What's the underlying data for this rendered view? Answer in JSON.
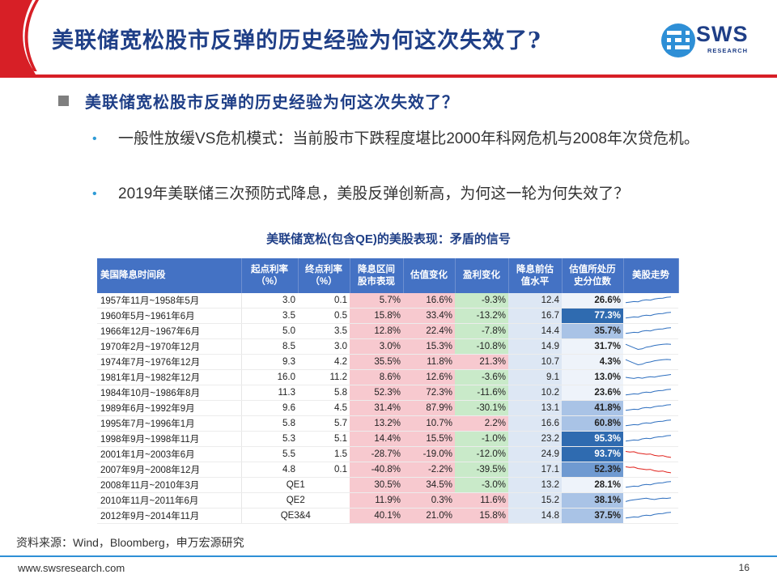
{
  "title": "美联储宽松股市反弹的历史经验为何这次失效了?",
  "logo": {
    "name": "SWS",
    "sub": "RESEARCH"
  },
  "headline": "美联储宽松股市反弹的历史经验为何这次失效了？",
  "bullets": [
    "一般性放缓VS危机模式：当前股市下跌程度堪比2000年科网危机与2008年次贷危机。",
    "2019年美联储三次预防式降息，美股反弹创新高，为何这一轮为何失效了？"
  ],
  "table_title": "美联储宽松(包含QE)的美股表现：矛盾的信号",
  "headers": [
    "美国降息时间段",
    "起点利率（%）",
    "终点利率（%）",
    "降息区间股市表现",
    "估值变化",
    "盈利变化",
    "降息前估值水平",
    "估值所处历史分位数",
    "美股走势"
  ],
  "header_lines": [
    [
      "美国降息时间段"
    ],
    [
      "起点利率",
      "（%）"
    ],
    [
      "终点利率",
      "（%）"
    ],
    [
      "降息区间",
      "股市表现"
    ],
    [
      "估值变化"
    ],
    [
      "盈利变化"
    ],
    [
      "降息前估",
      "值水平"
    ],
    [
      "估值所处历",
      "史分位数"
    ],
    [
      "美股走势"
    ]
  ],
  "rows": [
    {
      "period": "1957年11月~1958年5月",
      "start": "3.0",
      "end": "0.1",
      "market": "5.7%",
      "valuation": "16.6%",
      "earnings": "-9.3%",
      "pre_val": "12.4",
      "pct": "26.6%",
      "shade": "w",
      "spark": "up"
    },
    {
      "period": "1960年5月~1961年6月",
      "start": "3.5",
      "end": "0.5",
      "market": "15.8%",
      "valuation": "33.4%",
      "earnings": "-13.2%",
      "pre_val": "16.7",
      "pct": "77.3%",
      "shade": "vd",
      "spark": "up"
    },
    {
      "period": "1966年12月~1967年6月",
      "start": "5.0",
      "end": "3.5",
      "market": "12.8%",
      "valuation": "22.4%",
      "earnings": "-7.8%",
      "pre_val": "14.4",
      "pct": "35.7%",
      "shade": "m",
      "spark": "up"
    },
    {
      "period": "1970年2月~1970年12月",
      "start": "8.5",
      "end": "3.0",
      "market": "3.0%",
      "valuation": "15.3%",
      "earnings": "-10.8%",
      "pre_val": "14.9",
      "pct": "31.7%",
      "shade": "w",
      "spark": "vshape"
    },
    {
      "period": "1974年7月~1976年12月",
      "start": "9.3",
      "end": "4.2",
      "market": "35.5%",
      "valuation": "11.8%",
      "earnings": "21.3%",
      "pre_val": "10.7",
      "pct": "4.3%",
      "shade": "w",
      "spark": "vshape"
    },
    {
      "period": "1981年1月~1982年12月",
      "start": "16.0",
      "end": "11.2",
      "market": "8.6%",
      "valuation": "12.6%",
      "earnings": "-3.6%",
      "pre_val": "9.1",
      "pct": "13.0%",
      "shade": "w",
      "spark": "flatup"
    },
    {
      "period": "1984年10月~1986年8月",
      "start": "11.3",
      "end": "5.8",
      "market": "52.3%",
      "valuation": "72.3%",
      "earnings": "-11.6%",
      "pre_val": "10.2",
      "pct": "23.6%",
      "shade": "w",
      "spark": "up"
    },
    {
      "period": "1989年6月~1992年9月",
      "start": "9.6",
      "end": "4.5",
      "market": "31.4%",
      "valuation": "87.9%",
      "earnings": "-30.1%",
      "pre_val": "13.1",
      "pct": "41.8%",
      "shade": "m",
      "spark": "up"
    },
    {
      "period": "1995年7月~1996年1月",
      "start": "5.8",
      "end": "5.7",
      "market": "13.2%",
      "valuation": "10.7%",
      "earnings": "2.2%",
      "pre_val": "16.6",
      "pct": "60.8%",
      "shade": "m",
      "spark": "up"
    },
    {
      "period": "1998年9月~1998年11月",
      "start": "5.3",
      "end": "5.1",
      "market": "14.4%",
      "valuation": "15.5%",
      "earnings": "-1.0%",
      "pre_val": "23.2",
      "pct": "95.3%",
      "shade": "vd",
      "spark": "up"
    },
    {
      "period": "2001年1月~2003年6月",
      "start": "5.5",
      "end": "1.5",
      "market": "-28.7%",
      "valuation": "-19.0%",
      "earnings": "-12.0%",
      "pre_val": "24.9",
      "pct": "93.7%",
      "shade": "vd",
      "spark": "down"
    },
    {
      "period": "2007年9月~2008年12月",
      "start": "4.8",
      "end": "0.1",
      "market": "-40.8%",
      "valuation": "-2.2%",
      "earnings": "-39.5%",
      "pre_val": "17.1",
      "pct": "52.3%",
      "shade": "d",
      "spark": "down"
    },
    {
      "period": "2008年11月~2010年3月",
      "qe": "QE1",
      "market": "30.5%",
      "valuation": "34.5%",
      "earnings": "-3.0%",
      "pre_val": "13.2",
      "pct": "28.1%",
      "shade": "w",
      "spark": "up"
    },
    {
      "period": "2010年11月~2011年6月",
      "qe": "QE2",
      "market": "11.9%",
      "valuation": "0.3%",
      "earnings": "11.6%",
      "pre_val": "15.2",
      "pct": "38.1%",
      "shade": "m",
      "spark": "wave"
    },
    {
      "period": "2012年9月~2014年11月",
      "qe": "QE3&4",
      "market": "40.1%",
      "valuation": "21.0%",
      "earnings": "15.8%",
      "pre_val": "14.8",
      "pct": "37.5%",
      "shade": "m",
      "spark": "up"
    }
  ],
  "source": "资料来源：Wind，Bloomberg，申万宏源研究",
  "footer_url": "www.swsresearch.com",
  "page_number": "16",
  "colors": {
    "accent_blue": "#1f3f87",
    "header_blue": "#4472c4",
    "red": "#e0201a",
    "pink": "#f7c9cf",
    "green": "#c9eac9"
  }
}
